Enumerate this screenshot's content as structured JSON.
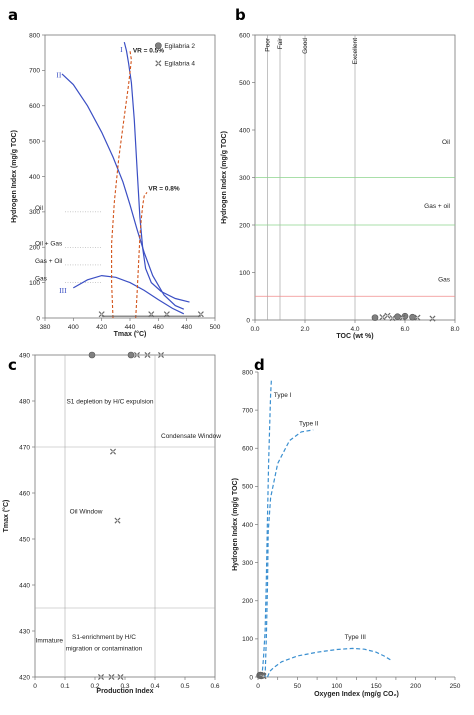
{
  "chart_data": [
    {
      "id": "a",
      "type": "line",
      "panel_label": "a",
      "xlabel": "Tmax (°C)",
      "ylabel": "Hydrogen Index (mg/g TOC)",
      "xlim": [
        380,
        500
      ],
      "ylim": [
        0,
        800
      ],
      "xticks": [
        380,
        400,
        420,
        440,
        460,
        480,
        500
      ],
      "yticks": [
        0,
        100,
        200,
        300,
        400,
        500,
        600,
        700,
        800
      ],
      "series": [
        {
          "name": "",
          "label": "I",
          "color": "#3b4fc4",
          "style": "solid",
          "x": [
            436.0,
            437.5,
            439.0,
            441.0,
            443.0,
            445.0,
            447.0,
            449.0,
            451.0,
            455.0,
            462.0,
            472.0,
            482.0
          ],
          "y": [
            780,
            755,
            720,
            665,
            560,
            420,
            285,
            195,
            140,
            100,
            75,
            55,
            45
          ]
        },
        {
          "name": "",
          "label": "II",
          "color": "#3b4fc4",
          "style": "solid",
          "x": [
            392,
            400,
            410,
            420,
            428,
            435,
            440,
            445,
            450,
            456,
            464,
            472,
            478
          ],
          "y": [
            690,
            660,
            600,
            525,
            455,
            385,
            320,
            250,
            185,
            120,
            65,
            35,
            25
          ]
        },
        {
          "name": "",
          "label": "III",
          "color": "#3b4fc4",
          "style": "solid",
          "x": [
            400,
            410,
            420,
            430,
            440,
            450,
            460,
            470,
            478
          ],
          "y": [
            85,
            108,
            120,
            115,
            100,
            78,
            52,
            27,
            12
          ]
        },
        {
          "name": "",
          "label": "VR = 0.5%",
          "color": "#d2531a",
          "style": "dashed",
          "x": [
            428,
            427,
            427,
            429,
            432,
            436,
            439,
            441,
            440
          ],
          "y": [
            0,
            100,
            210,
            330,
            450,
            570,
            660,
            730,
            755
          ]
        },
        {
          "name": "",
          "label": "VR = 0.8%",
          "color": "#d2531a",
          "style": "dashed",
          "x": [
            444,
            445,
            446,
            447,
            448,
            449,
            450,
            452
          ],
          "y": [
            0,
            70,
            150,
            230,
            280,
            320,
            345,
            355
          ]
        },
        {
          "name": "Egilabria 2",
          "color": "#808080",
          "style": "marker-circle",
          "x": [],
          "y": []
        },
        {
          "name": "Egilabria 4",
          "color": "#666666",
          "style": "marker-x",
          "x": [
            420,
            455,
            466,
            490
          ],
          "y": [
            5,
            5,
            5,
            5
          ]
        }
      ],
      "thresholds": [
        {
          "label": "Oil",
          "y": 300
        },
        {
          "label": "Oil + Gas",
          "y": 200
        },
        {
          "label": "Gas + Oil",
          "y": 150
        },
        {
          "label": "Gas",
          "y": 100
        }
      ],
      "curve_labels": [
        "I",
        "II",
        "III"
      ],
      "vr_labels": [
        "VR = 0.5%",
        "VR = 0.8%"
      ],
      "legend": [
        "Egilabria 2",
        "Egilabria 4"
      ],
      "grid": false,
      "legend_position": "top-right"
    },
    {
      "id": "b",
      "type": "scatter",
      "panel_label": "b",
      "xlabel": "TOC (wt %)",
      "ylabel": "Hydrogen Index (mg/g TOC)",
      "xlim": [
        0,
        8
      ],
      "ylim": [
        0,
        600
      ],
      "xticks": [
        "0.0",
        "2.0",
        "4.0",
        "6.0",
        "8.0"
      ],
      "yticks": [
        0,
        100,
        200,
        300,
        400,
        500,
        600
      ],
      "vertical_lines": [
        {
          "label": "Poor",
          "x": 0.5
        },
        {
          "label": "Fair",
          "x": 1.0
        },
        {
          "label": "Good",
          "x": 2.0
        },
        {
          "label": "Excellent",
          "x": 4.0
        }
      ],
      "horizontal_lines": [
        {
          "label": "Oil",
          "y": 300,
          "color": "#8cd48c"
        },
        {
          "label": "Gas + oil",
          "y": 200,
          "color": "#8cd48c"
        },
        {
          "label": "Gas",
          "y": 50,
          "color": "#f08c8c"
        }
      ],
      "zone_labels": [
        "Oil",
        "Gas + oil",
        "Gas"
      ],
      "series": [
        {
          "name": "Egilabria 2",
          "marker": "circle",
          "color": "#808080",
          "x": [
            4.8,
            5.7,
            6.0,
            6.3
          ],
          "y": [
            5,
            7,
            8,
            6
          ]
        },
        {
          "name": "Egilabria 4",
          "marker": "x",
          "color": "#666666",
          "x": [
            5.1,
            5.3,
            5.5,
            5.9,
            6.5,
            7.1
          ],
          "y": [
            6,
            9,
            4,
            5,
            5,
            3
          ]
        }
      ],
      "grid": false
    },
    {
      "id": "c",
      "type": "scatter",
      "panel_label": "c",
      "xlabel": "Production Index",
      "ylabel": "Tmax (°C)",
      "xlim": [
        0,
        0.6
      ],
      "ylim": [
        420,
        490
      ],
      "xticks": [
        "0",
        "0.1",
        "0.2",
        "0.3",
        "0.4",
        "0.5",
        "0.6"
      ],
      "yticks": [
        420,
        430,
        440,
        450,
        460,
        470,
        480,
        490
      ],
      "vertical_lines": [
        {
          "x": 0.1
        },
        {
          "x": 0.4
        }
      ],
      "horizontal_lines": [
        {
          "y": 470
        },
        {
          "y": 435
        }
      ],
      "zone_labels": [
        {
          "text": "S1 depletion by H/C expulsion",
          "color": "#222222"
        },
        {
          "text": "Condensate Window",
          "color": "#e0342b"
        },
        {
          "text": "Oil Window",
          "color": "#2fb52f"
        },
        {
          "text": "S1-enrichment by H/C",
          "color": "#222222"
        },
        {
          "text": "migration or contamination",
          "color": "#222222"
        },
        {
          "text": "Immature",
          "color": "#e0342b"
        }
      ],
      "series": [
        {
          "name": "Egilabria 2",
          "marker": "circle",
          "color": "#808080",
          "x": [
            0.19,
            0.32
          ],
          "y": [
            490,
            490
          ]
        },
        {
          "name": "Egilabria 4",
          "marker": "x",
          "color": "#666666",
          "x": [
            0.34,
            0.375,
            0.42,
            0.26,
            0.275,
            0.22,
            0.255,
            0.285
          ],
          "y": [
            490,
            490,
            490,
            469,
            454,
            420,
            420,
            420
          ]
        }
      ],
      "grid": false
    },
    {
      "id": "d",
      "type": "line",
      "panel_label": "d",
      "xlabel": "Oxygen Index (mg/g CO₂)",
      "ylabel": "Hydrogen Index (mg/g TOC)",
      "xlim": [
        0,
        250
      ],
      "ylim": [
        0,
        800
      ],
      "xticks": [
        0,
        25,
        50,
        75,
        100,
        125,
        150,
        175,
        200,
        225,
        250
      ],
      "xtick_labels": [
        "0",
        "50",
        "100",
        "150",
        "200",
        "250"
      ],
      "yticks": [
        0,
        100,
        200,
        300,
        400,
        500,
        600,
        700,
        800
      ],
      "series": [
        {
          "name": "",
          "label": "Type I",
          "color": "#3a8fd0",
          "style": "dashed",
          "x": [
            5,
            7,
            9,
            10.5,
            12,
            13.5,
            15,
            16,
            17
          ],
          "y": [
            0,
            50,
            120,
            250,
            420,
            560,
            670,
            740,
            780
          ]
        },
        {
          "name": "",
          "label": "Type II",
          "color": "#3a8fd0",
          "style": "dashed",
          "x": [
            9,
            10.5,
            12,
            13,
            16,
            25,
            40,
            55,
            70
          ],
          "y": [
            0,
            100,
            240,
            380,
            470,
            560,
            620,
            643,
            648
          ]
        },
        {
          "name": "",
          "label": "Type III",
          "color": "#3a8fd0",
          "style": "dashed",
          "x": [
            12,
            15,
            20,
            30,
            50,
            75,
            100,
            120,
            135,
            150,
            160,
            168
          ],
          "y": [
            0,
            15,
            25,
            40,
            55,
            65,
            72,
            75,
            73,
            65,
            55,
            45
          ]
        },
        {
          "name": "Egilabria 2",
          "marker": "circle",
          "color": "#808080",
          "x": [
            2,
            3,
            4
          ],
          "y": [
            4,
            5,
            3
          ]
        },
        {
          "name": "Egilabria 4",
          "marker": "x",
          "color": "#666666",
          "x": [
            3,
            4,
            5,
            6,
            7
          ],
          "y": [
            6,
            3,
            5,
            4,
            2
          ]
        }
      ],
      "grid": false
    }
  ]
}
